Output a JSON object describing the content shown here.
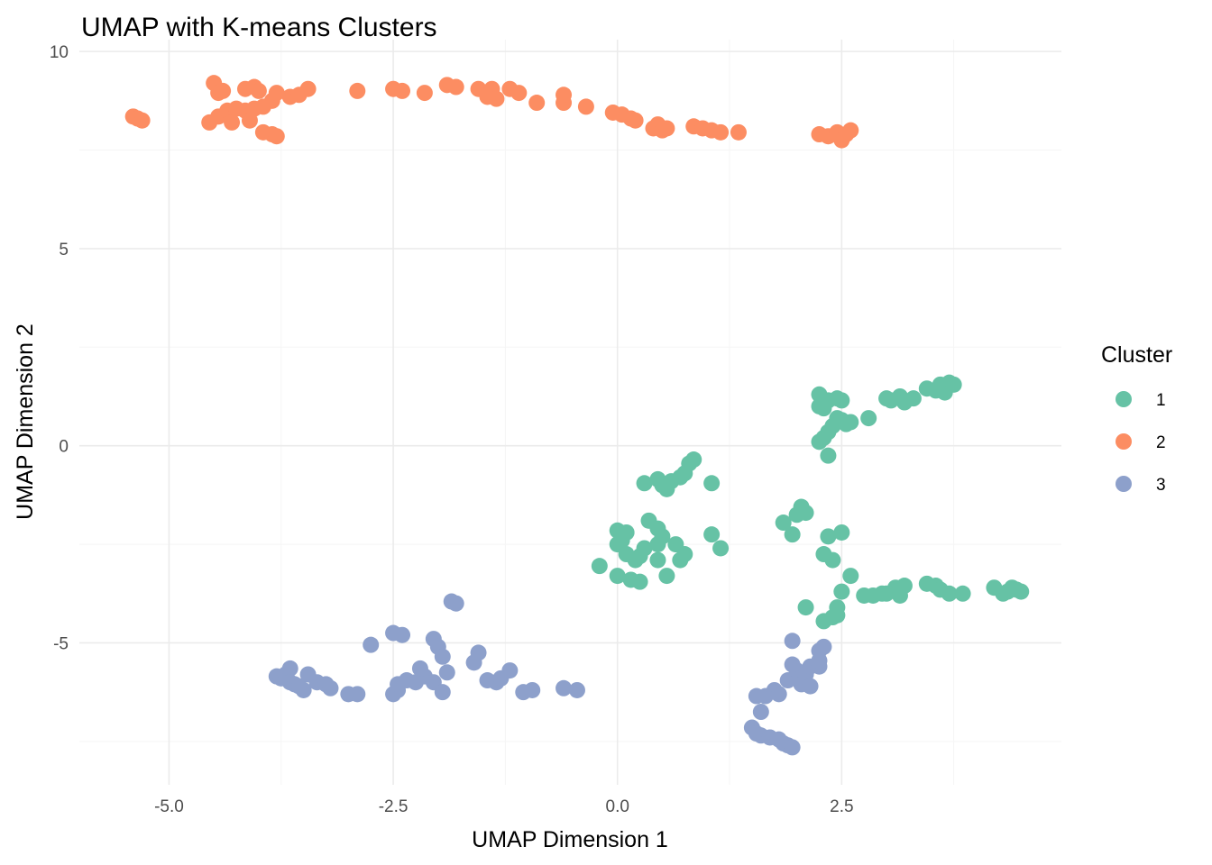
{
  "chart_data": {
    "type": "scatter",
    "title": "UMAP with K-means Clusters",
    "xlabel": "UMAP Dimension 1",
    "ylabel": "UMAP Dimension 2",
    "xlim": [
      -6.0,
      4.95
    ],
    "ylim": [
      -8.6,
      10.3
    ],
    "x_ticks": [
      -5.0,
      -2.5,
      0.0,
      2.5
    ],
    "x_tick_labels": [
      "-5.0",
      "-2.5",
      "0.0",
      "2.5"
    ],
    "y_ticks": [
      -5,
      0,
      5,
      10
    ],
    "y_tick_labels": [
      "-5",
      "0",
      "5",
      "10"
    ],
    "grid": true,
    "legend": {
      "title": "Cluster",
      "placement": "right"
    },
    "series": [
      {
        "name": "1",
        "color": "#66c2a5",
        "points": [
          [
            2.25,
            1.3
          ],
          [
            2.35,
            1.15
          ],
          [
            2.25,
            1.0
          ],
          [
            2.3,
            0.95
          ],
          [
            2.45,
            1.2
          ],
          [
            2.5,
            1.15
          ],
          [
            2.45,
            0.7
          ],
          [
            2.5,
            0.65
          ],
          [
            2.4,
            0.5
          ],
          [
            2.55,
            0.55
          ],
          [
            2.6,
            0.6
          ],
          [
            2.8,
            0.7
          ],
          [
            2.35,
            0.35
          ],
          [
            2.25,
            0.1
          ],
          [
            2.3,
            0.2
          ],
          [
            2.35,
            -0.25
          ],
          [
            3.0,
            1.2
          ],
          [
            3.05,
            1.15
          ],
          [
            3.15,
            1.25
          ],
          [
            3.2,
            1.1
          ],
          [
            3.3,
            1.2
          ],
          [
            3.45,
            1.45
          ],
          [
            3.55,
            1.4
          ],
          [
            3.6,
            1.55
          ],
          [
            3.65,
            1.35
          ],
          [
            3.7,
            1.6
          ],
          [
            3.75,
            1.55
          ],
          [
            0.3,
            -0.95
          ],
          [
            0.45,
            -0.85
          ],
          [
            0.5,
            -1.0
          ],
          [
            0.55,
            -1.1
          ],
          [
            0.6,
            -0.9
          ],
          [
            0.7,
            -0.8
          ],
          [
            0.75,
            -0.7
          ],
          [
            0.8,
            -0.45
          ],
          [
            0.85,
            -0.35
          ],
          [
            1.05,
            -0.95
          ],
          [
            0.0,
            -2.15
          ],
          [
            0.05,
            -2.4
          ],
          [
            0.1,
            -2.2
          ],
          [
            0.0,
            -2.5
          ],
          [
            -0.2,
            -3.05
          ],
          [
            0.0,
            -3.3
          ],
          [
            0.1,
            -2.75
          ],
          [
            0.2,
            -2.9
          ],
          [
            0.15,
            -3.4
          ],
          [
            0.25,
            -3.45
          ],
          [
            0.25,
            -2.8
          ],
          [
            0.3,
            -2.6
          ],
          [
            0.35,
            -1.9
          ],
          [
            0.45,
            -2.1
          ],
          [
            0.5,
            -2.3
          ],
          [
            0.45,
            -2.5
          ],
          [
            0.45,
            -2.9
          ],
          [
            0.55,
            -3.3
          ],
          [
            0.65,
            -2.5
          ],
          [
            0.7,
            -2.9
          ],
          [
            0.75,
            -2.75
          ],
          [
            1.05,
            -2.25
          ],
          [
            1.15,
            -2.6
          ],
          [
            1.85,
            -1.95
          ],
          [
            1.95,
            -2.25
          ],
          [
            2.0,
            -1.75
          ],
          [
            2.05,
            -1.55
          ],
          [
            2.1,
            -1.7
          ],
          [
            2.35,
            -2.3
          ],
          [
            2.5,
            -2.2
          ],
          [
            2.3,
            -2.75
          ],
          [
            2.4,
            -2.9
          ],
          [
            2.6,
            -3.3
          ],
          [
            2.5,
            -3.7
          ],
          [
            2.75,
            -3.8
          ],
          [
            2.85,
            -3.8
          ],
          [
            2.95,
            -3.75
          ],
          [
            3.1,
            -3.6
          ],
          [
            3.2,
            -3.55
          ],
          [
            3.0,
            -3.75
          ],
          [
            3.15,
            -3.8
          ],
          [
            3.45,
            -3.5
          ],
          [
            3.55,
            -3.55
          ],
          [
            3.6,
            -3.65
          ],
          [
            3.7,
            -3.75
          ],
          [
            3.85,
            -3.75
          ],
          [
            4.2,
            -3.6
          ],
          [
            4.3,
            -3.75
          ],
          [
            4.35,
            -3.7
          ],
          [
            4.4,
            -3.6
          ],
          [
            4.45,
            -3.65
          ],
          [
            4.5,
            -3.7
          ],
          [
            2.1,
            -4.1
          ],
          [
            2.3,
            -4.45
          ],
          [
            2.4,
            -4.35
          ],
          [
            2.45,
            -4.1
          ],
          [
            2.45,
            -4.3
          ]
        ]
      },
      {
        "name": "2",
        "color": "#fc8d62",
        "points": [
          [
            -5.4,
            8.35
          ],
          [
            -5.35,
            8.3
          ],
          [
            -5.3,
            8.25
          ],
          [
            -4.55,
            8.2
          ],
          [
            -4.45,
            8.35
          ],
          [
            -4.35,
            8.5
          ],
          [
            -4.3,
            8.2
          ],
          [
            -4.25,
            8.55
          ],
          [
            -4.15,
            8.5
          ],
          [
            -4.5,
            9.2
          ],
          [
            -4.45,
            8.95
          ],
          [
            -4.4,
            9.0
          ],
          [
            -4.15,
            9.05
          ],
          [
            -4.05,
            9.1
          ],
          [
            -4.0,
            9.0
          ],
          [
            -4.1,
            8.25
          ],
          [
            -4.05,
            8.55
          ],
          [
            -3.95,
            8.6
          ],
          [
            -3.85,
            8.75
          ],
          [
            -3.95,
            7.95
          ],
          [
            -3.85,
            7.9
          ],
          [
            -3.8,
            7.85
          ],
          [
            -3.65,
            8.85
          ],
          [
            -3.55,
            8.9
          ],
          [
            -3.45,
            9.05
          ],
          [
            -3.8,
            8.95
          ],
          [
            -2.9,
            9.0
          ],
          [
            -2.5,
            9.05
          ],
          [
            -2.4,
            9.0
          ],
          [
            -2.15,
            8.95
          ],
          [
            -1.9,
            9.15
          ],
          [
            -1.8,
            9.1
          ],
          [
            -1.55,
            9.05
          ],
          [
            -1.45,
            8.85
          ],
          [
            -1.4,
            9.05
          ],
          [
            -1.35,
            8.8
          ],
          [
            -1.2,
            9.05
          ],
          [
            -1.1,
            8.95
          ],
          [
            -0.9,
            8.7
          ],
          [
            -0.6,
            8.7
          ],
          [
            -0.6,
            8.9
          ],
          [
            -0.35,
            8.6
          ],
          [
            -0.05,
            8.45
          ],
          [
            0.05,
            8.4
          ],
          [
            0.15,
            8.3
          ],
          [
            0.2,
            8.25
          ],
          [
            0.4,
            8.05
          ],
          [
            0.45,
            8.15
          ],
          [
            0.5,
            8.0
          ],
          [
            0.55,
            8.05
          ],
          [
            0.85,
            8.1
          ],
          [
            0.95,
            8.05
          ],
          [
            1.05,
            8.0
          ],
          [
            1.15,
            7.95
          ],
          [
            1.35,
            7.95
          ],
          [
            2.25,
            7.9
          ],
          [
            2.35,
            7.85
          ],
          [
            2.45,
            7.95
          ],
          [
            2.5,
            7.75
          ],
          [
            2.55,
            7.9
          ],
          [
            2.6,
            8.0
          ]
        ]
      },
      {
        "name": "3",
        "color": "#8da0cb",
        "points": [
          [
            -3.8,
            -5.85
          ],
          [
            -3.75,
            -5.9
          ],
          [
            -3.7,
            -5.8
          ],
          [
            -3.65,
            -5.65
          ],
          [
            -3.65,
            -6.0
          ],
          [
            -3.6,
            -6.05
          ],
          [
            -3.55,
            -6.1
          ],
          [
            -3.5,
            -6.2
          ],
          [
            -3.45,
            -5.8
          ],
          [
            -3.35,
            -6.0
          ],
          [
            -3.25,
            -6.05
          ],
          [
            -3.2,
            -6.15
          ],
          [
            -3.0,
            -6.3
          ],
          [
            -2.9,
            -6.3
          ],
          [
            -2.75,
            -5.05
          ],
          [
            -2.5,
            -6.3
          ],
          [
            -2.45,
            -6.2
          ],
          [
            -2.45,
            -6.05
          ],
          [
            -2.35,
            -5.95
          ],
          [
            -2.5,
            -4.75
          ],
          [
            -2.4,
            -4.8
          ],
          [
            -2.25,
            -6.0
          ],
          [
            -2.15,
            -5.85
          ],
          [
            -2.2,
            -5.65
          ],
          [
            -2.05,
            -6.0
          ],
          [
            -1.95,
            -6.25
          ],
          [
            -2.05,
            -4.9
          ],
          [
            -2.0,
            -5.1
          ],
          [
            -1.95,
            -5.35
          ],
          [
            -1.9,
            -5.75
          ],
          [
            -1.85,
            -3.95
          ],
          [
            -1.8,
            -4.0
          ],
          [
            -1.6,
            -5.5
          ],
          [
            -1.55,
            -5.25
          ],
          [
            -1.45,
            -5.95
          ],
          [
            -1.35,
            -6.0
          ],
          [
            -1.3,
            -5.9
          ],
          [
            -1.2,
            -5.7
          ],
          [
            -1.05,
            -6.25
          ],
          [
            -0.95,
            -6.2
          ],
          [
            -0.6,
            -6.15
          ],
          [
            -0.45,
            -6.2
          ],
          [
            1.5,
            -7.15
          ],
          [
            1.55,
            -7.3
          ],
          [
            1.6,
            -7.35
          ],
          [
            1.7,
            -7.4
          ],
          [
            1.8,
            -7.45
          ],
          [
            1.85,
            -7.55
          ],
          [
            1.9,
            -7.6
          ],
          [
            1.95,
            -7.65
          ],
          [
            1.6,
            -6.75
          ],
          [
            1.65,
            -6.35
          ],
          [
            1.75,
            -6.2
          ],
          [
            1.55,
            -6.35
          ],
          [
            1.8,
            -6.3
          ],
          [
            1.9,
            -5.95
          ],
          [
            2.0,
            -5.7
          ],
          [
            1.95,
            -5.55
          ],
          [
            2.05,
            -6.05
          ],
          [
            2.1,
            -5.8
          ],
          [
            2.15,
            -6.1
          ],
          [
            2.15,
            -5.6
          ],
          [
            2.25,
            -5.6
          ],
          [
            2.25,
            -5.45
          ],
          [
            1.95,
            -4.95
          ],
          [
            2.25,
            -5.2
          ],
          [
            2.3,
            -5.1
          ]
        ]
      }
    ]
  }
}
